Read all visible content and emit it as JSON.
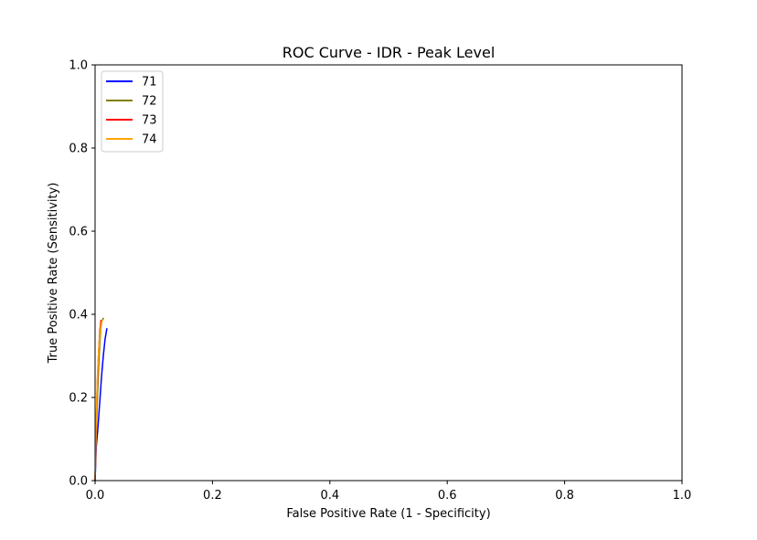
{
  "chart_data": {
    "type": "line",
    "title": "ROC Curve - IDR - Peak Level",
    "xlabel": "False Positive Rate (1 - Specificity)",
    "ylabel": "True Positive Rate (Sensitivity)",
    "xlim": [
      0.0,
      1.0
    ],
    "ylim": [
      0.0,
      1.0
    ],
    "x_ticks": [
      "0.0",
      "0.2",
      "0.4",
      "0.6",
      "0.8",
      "1.0"
    ],
    "y_ticks": [
      "0.0",
      "0.2",
      "0.4",
      "0.6",
      "0.8",
      "1.0"
    ],
    "grid": false,
    "legend_position": "top-left",
    "series": [
      {
        "name": "71",
        "color": "#0000ff",
        "x": [
          0.0,
          0.002,
          0.005,
          0.008,
          0.011,
          0.014,
          0.017,
          0.02
        ],
        "y": [
          0.0,
          0.08,
          0.13,
          0.19,
          0.25,
          0.3,
          0.34,
          0.365
        ]
      },
      {
        "name": "72",
        "color": "#808000",
        "x": [
          0.0,
          0.002,
          0.004,
          0.006,
          0.008,
          0.01,
          0.012,
          0.014
        ],
        "y": [
          0.0,
          0.12,
          0.2,
          0.27,
          0.33,
          0.37,
          0.385,
          0.39
        ]
      },
      {
        "name": "73",
        "color": "#ff0000",
        "x": [
          0.0,
          0.002,
          0.004,
          0.006,
          0.008,
          0.01
        ],
        "y": [
          0.0,
          0.14,
          0.24,
          0.31,
          0.36,
          0.385
        ]
      },
      {
        "name": "74",
        "color": "#ffa500",
        "x": [
          0.0,
          0.002,
          0.004,
          0.006,
          0.008,
          0.01,
          0.012
        ],
        "y": [
          0.0,
          0.15,
          0.25,
          0.31,
          0.35,
          0.375,
          0.385
        ]
      }
    ]
  }
}
